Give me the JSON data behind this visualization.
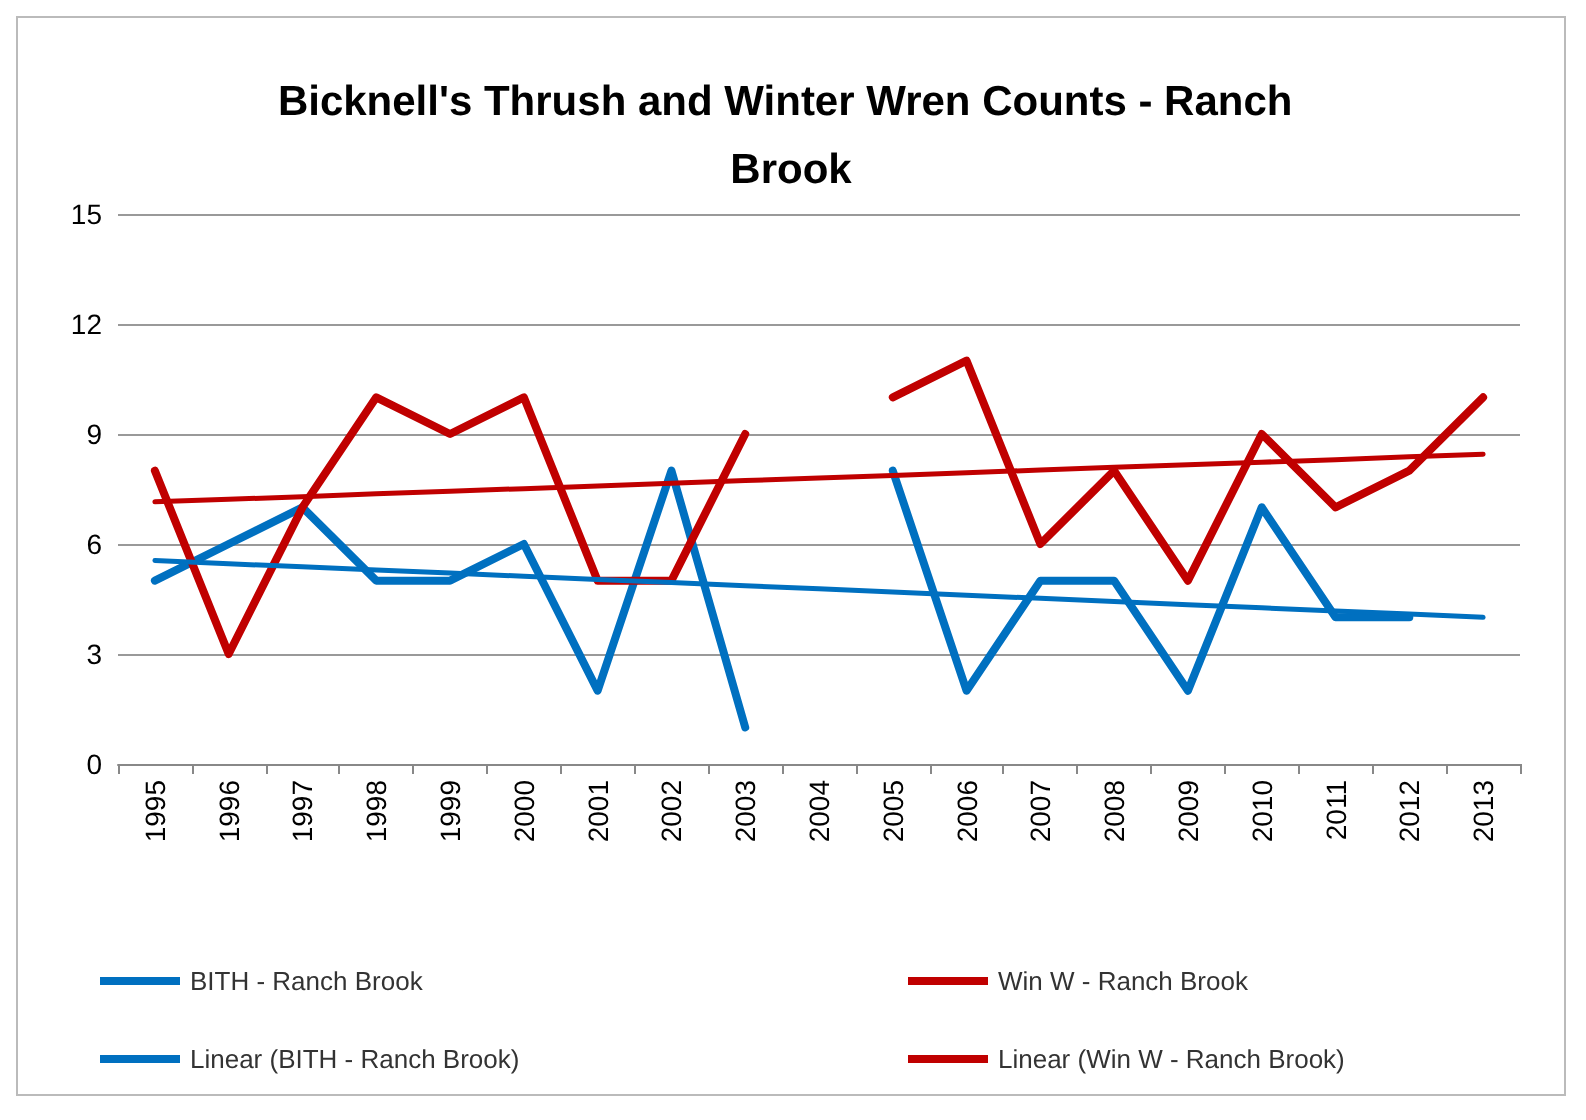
{
  "chart_data": {
    "type": "line",
    "title": "Bicknell's Thrush and Winter Wren Counts - Ranch Brook",
    "categories": [
      "1995",
      "1996",
      "1997",
      "1998",
      "1999",
      "2000",
      "2001",
      "2002",
      "2003",
      "2004",
      "2005",
      "2006",
      "2007",
      "2008",
      "2009",
      "2010",
      "2011",
      "2012",
      "2013"
    ],
    "series": [
      {
        "name": "BITH - Ranch Brook",
        "color": "#0070c0",
        "values": [
          5,
          6,
          7,
          5,
          5,
          6,
          2,
          8,
          1,
          null,
          8,
          2,
          5,
          5,
          2,
          7,
          4,
          4,
          null
        ]
      },
      {
        "name": "Win W - Ranch Brook",
        "color": "#c00000",
        "values": [
          8,
          3,
          7,
          10,
          9,
          10,
          5,
          5,
          9,
          null,
          10,
          11,
          6,
          8,
          5,
          9,
          7,
          8,
          10
        ]
      },
      {
        "name": "Linear (BITH - Ranch Brook)",
        "color": "#0070c0",
        "values": [
          5.55,
          5.46,
          5.38,
          5.29,
          5.21,
          5.12,
          5.03,
          4.95,
          4.86,
          4.78,
          4.69,
          4.6,
          4.52,
          4.43,
          4.34,
          4.26,
          4.17,
          4.09,
          4.0
        ]
      },
      {
        "name": "Linear (Win W - Ranch Brook)",
        "color": "#c00000",
        "values": [
          7.15,
          7.22,
          7.29,
          7.37,
          7.44,
          7.51,
          7.58,
          7.66,
          7.73,
          7.8,
          7.87,
          7.94,
          8.02,
          8.09,
          8.16,
          8.23,
          8.3,
          8.38,
          8.45
        ]
      }
    ],
    "ylim": [
      0,
      15
    ],
    "yticks": [
      0,
      3,
      6,
      9,
      12,
      15
    ],
    "grid": "y",
    "legend": "bottom",
    "marker": "none",
    "line_style": "solid"
  }
}
